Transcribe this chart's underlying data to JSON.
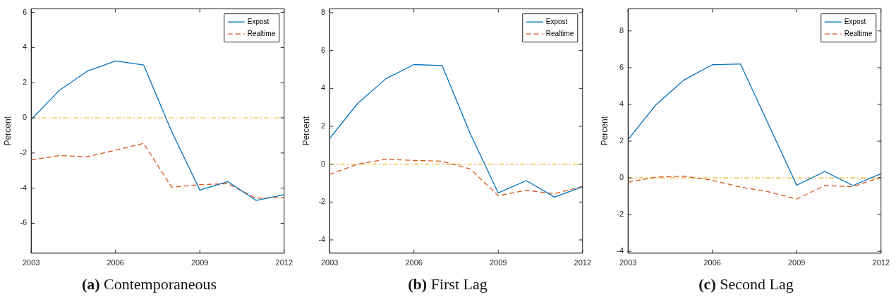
{
  "chart_data": [
    {
      "type": "line",
      "title": "(a) Contemporaneous",
      "ylabel": "Percent",
      "x": [
        2003,
        2004,
        2005,
        2006,
        2007,
        2008,
        2009,
        2010,
        2011,
        2012
      ],
      "xlim": [
        2003,
        2012
      ],
      "xticks": [
        2003,
        2006,
        2009,
        2012
      ],
      "ylim": [
        -7.7,
        6.2
      ],
      "yticks": [
        -6,
        -4,
        -2,
        0,
        2,
        4,
        6
      ],
      "grid": false,
      "legend": "top right",
      "marker": "none",
      "series": [
        {
          "name": "Expost",
          "color": "#0072bd",
          "line_style": "solid",
          "values": [
            -0.1,
            1.56,
            2.66,
            3.24,
            3.01,
            -0.78,
            -4.11,
            -3.63,
            -4.7,
            -4.37
          ]
        },
        {
          "name": "Realtime",
          "color": "#d95319",
          "line_style": "dashed",
          "values": [
            -2.39,
            -2.15,
            -2.21,
            -1.84,
            -1.45,
            -3.95,
            -3.8,
            -3.75,
            -4.57,
            -4.52
          ]
        }
      ],
      "ref_lines": [
        {
          "axis": "y",
          "value": 0,
          "color": "#edb120",
          "line_style": "dashdot"
        }
      ]
    },
    {
      "type": "line",
      "title": "(b) First Lag",
      "ylabel": "Percent",
      "x": [
        2003,
        2004,
        2005,
        2006,
        2007,
        2008,
        2009,
        2010,
        2011,
        2012
      ],
      "xlim": [
        2003,
        2012
      ],
      "xticks": [
        2003,
        2006,
        2009,
        2012
      ],
      "ylim": [
        -4.7,
        8.2
      ],
      "yticks": [
        -4,
        -2,
        0,
        2,
        4,
        6,
        8
      ],
      "grid": false,
      "legend": "top right",
      "marker": "none",
      "series": [
        {
          "name": "Expost",
          "color": "#0072bd",
          "line_style": "solid",
          "values": [
            1.35,
            3.21,
            4.51,
            5.26,
            5.21,
            1.63,
            -1.52,
            -0.87,
            -1.74,
            -1.19
          ]
        },
        {
          "name": "Realtime",
          "color": "#d95319",
          "line_style": "dashed",
          "values": [
            -0.54,
            0,
            0.26,
            0.2,
            0.16,
            -0.25,
            -1.66,
            -1.38,
            -1.56,
            -1.17
          ]
        }
      ],
      "ref_lines": [
        {
          "axis": "y",
          "value": 0,
          "color": "#edb120",
          "line_style": "dashdot"
        }
      ]
    },
    {
      "type": "line",
      "title": "(c) Second Lag",
      "ylabel": "Percent",
      "x": [
        2003,
        2004,
        2005,
        2006,
        2007,
        2008,
        2009,
        2010,
        2011,
        2012
      ],
      "xlim": [
        2003,
        2012
      ],
      "xticks": [
        2003,
        2006,
        2009,
        2012
      ],
      "ylim": [
        -4.1,
        9.2
      ],
      "yticks": [
        -4,
        -2,
        0,
        2,
        4,
        6,
        8
      ],
      "grid": false,
      "legend": "top right",
      "marker": "none",
      "series": [
        {
          "name": "Expost",
          "color": "#0072bd",
          "line_style": "solid",
          "values": [
            2.08,
            3.99,
            5.34,
            6.16,
            6.2,
            2.9,
            -0.4,
            0.35,
            -0.42,
            0.23
          ]
        },
        {
          "name": "Realtime",
          "color": "#d95319",
          "line_style": "dashed",
          "values": [
            -0.23,
            0.04,
            0.09,
            -0.13,
            -0.5,
            -0.76,
            -1.15,
            -0.42,
            -0.48,
            0.04
          ]
        }
      ],
      "ref_lines": [
        {
          "axis": "y",
          "value": 0,
          "color": "#edb120",
          "line_style": "dashdot"
        }
      ]
    }
  ]
}
